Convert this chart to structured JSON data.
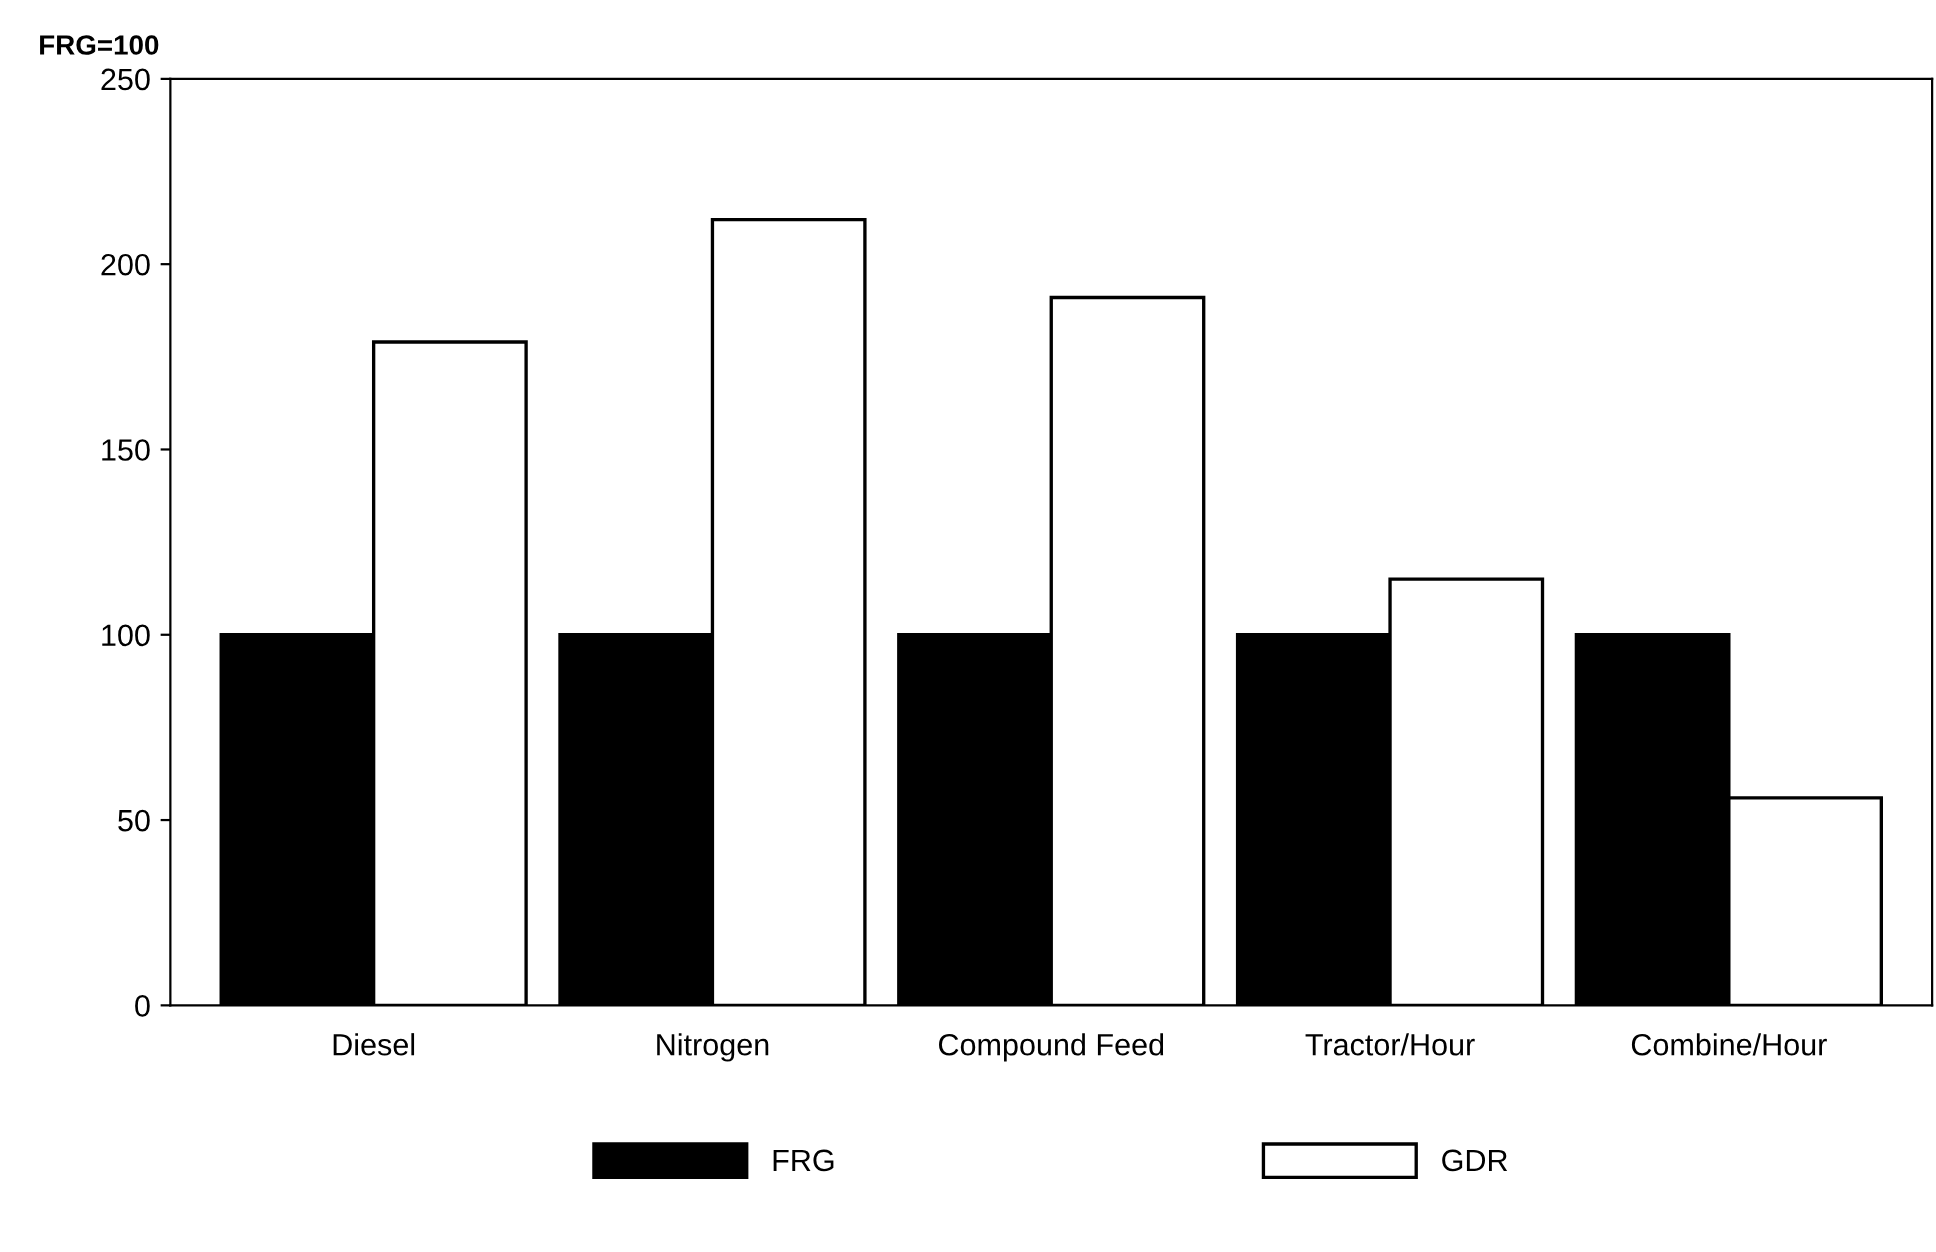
{
  "chart_data": {
    "type": "bar",
    "ylabel": "FRG=100",
    "categories": [
      "Diesel",
      "Nitrogen",
      "Compound Feed",
      "Tractor/Hour",
      "Combine/Hour"
    ],
    "series": [
      {
        "name": "FRG",
        "color": "#000000",
        "values": [
          100,
          100,
          100,
          100,
          100
        ]
      },
      {
        "name": "GDR",
        "color": "#ffffff",
        "values": [
          179,
          212,
          191,
          115,
          56
        ]
      }
    ],
    "ylim": [
      0,
      250
    ],
    "yticks": [
      0,
      50,
      100,
      150,
      200,
      250
    ],
    "grid": false,
    "legend": "bottom"
  }
}
